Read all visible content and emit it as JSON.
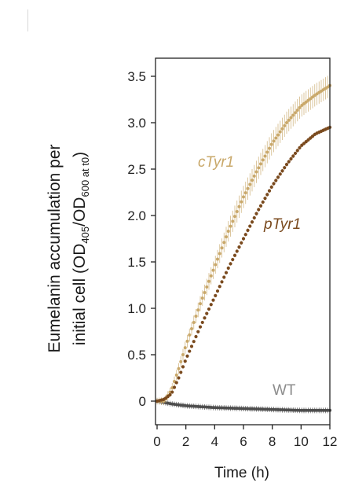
{
  "chart_data": {
    "type": "line",
    "xlabel": "Time (h)",
    "ylabel": {
      "line1": "Eumelanin accumulation per",
      "line2_prefix": "initial cell (OD",
      "line2_sub1": "405",
      "line2_mid": "/OD",
      "line2_sub2": "600 at t0",
      "line2_suffix": ")"
    },
    "xlim": [
      0,
      12
    ],
    "ylim": [
      -0.2,
      3.75
    ],
    "x_ticks": [
      0,
      2,
      4,
      6,
      8,
      10,
      12
    ],
    "x_tick_labels": [
      "0",
      "2",
      "4",
      "6",
      "8",
      "10",
      "12"
    ],
    "y_ticks": [
      0,
      0.5,
      1.0,
      1.5,
      2.0,
      2.5,
      3.0,
      3.5
    ],
    "y_tick_labels": [
      "0",
      "0.5",
      "1.0",
      "1.5",
      "2.0",
      "2.5",
      "3.0",
      "3.5"
    ],
    "grid": false,
    "series": [
      {
        "name": "cTyr1",
        "color": "#c9a86a",
        "x": [
          0,
          0.5,
          1,
          1.5,
          2,
          3,
          4,
          5,
          6,
          7,
          8,
          9,
          10,
          11,
          12
        ],
        "values": [
          0,
          0.0,
          0.12,
          0.35,
          0.6,
          1.05,
          1.45,
          1.85,
          2.2,
          2.5,
          2.78,
          3.0,
          3.18,
          3.3,
          3.4
        ],
        "error": 0.12
      },
      {
        "name": "pTyr1",
        "color": "#7a4a1e",
        "x": [
          0,
          0.5,
          1,
          1.5,
          2,
          3,
          4,
          5,
          6,
          7,
          8,
          9,
          10,
          11,
          12
        ],
        "values": [
          0,
          0.02,
          0.08,
          0.25,
          0.45,
          0.8,
          1.12,
          1.45,
          1.75,
          2.05,
          2.32,
          2.55,
          2.75,
          2.88,
          2.95
        ],
        "error": 0.02
      },
      {
        "name": "WT",
        "color": "#4d4d4d",
        "x": [
          0,
          1,
          2,
          4,
          6,
          8,
          10,
          12
        ],
        "values": [
          0,
          -0.03,
          -0.05,
          -0.07,
          -0.08,
          -0.09,
          -0.1,
          -0.1
        ],
        "error": 0.03
      }
    ],
    "series_label_colors": {
      "cTyr1": "#c9a86a",
      "pTyr1": "#7a4a1e",
      "WT": "#8c8c8c"
    }
  }
}
